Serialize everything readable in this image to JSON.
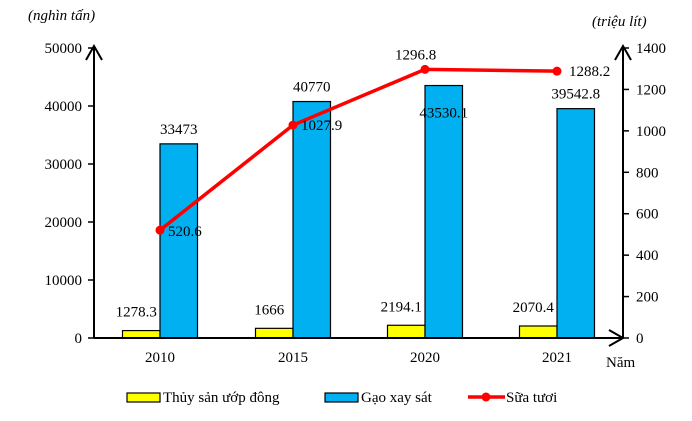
{
  "chart_data": {
    "type": "bar+line",
    "title": "",
    "categories": [
      "2010",
      "2015",
      "2020",
      "2021"
    ],
    "xlabel": "Năm",
    "ylabel_left": "(nghìn tấn)",
    "ylabel_right": "(triệu lít)",
    "ylim_left": [
      0,
      50000
    ],
    "ylim_right": [
      0,
      1400
    ],
    "yticks_left": [
      "0",
      "10000",
      "20000",
      "30000",
      "40000",
      "50000"
    ],
    "yticks_right": [
      "0",
      "200",
      "400",
      "600",
      "800",
      "1000",
      "1200",
      "1400"
    ],
    "grid": false,
    "legend_position": "bottom",
    "series": [
      {
        "name": "Thủy sản ướp đông",
        "type": "bar",
        "axis": "left",
        "color": "#FFFF00",
        "values": [
          1278.3,
          1666,
          2194.1,
          2070.4
        ],
        "labels": [
          "1278.3",
          "1666",
          "2194.1",
          "2070.4"
        ]
      },
      {
        "name": "Gạo xay sát",
        "type": "bar",
        "axis": "left",
        "color": "#00B0F0",
        "values": [
          33473,
          40770,
          43530.1,
          39542.8
        ],
        "labels": [
          "33473",
          "40770",
          "43530.1",
          "39542.8"
        ]
      },
      {
        "name": "Sữa tươi",
        "type": "line",
        "axis": "right",
        "color": "#FF0000",
        "values": [
          520.6,
          1027.9,
          1296.8,
          1288.2
        ],
        "labels": [
          "520.6",
          "1027.9",
          "1296.8",
          "1288.2"
        ]
      }
    ]
  }
}
